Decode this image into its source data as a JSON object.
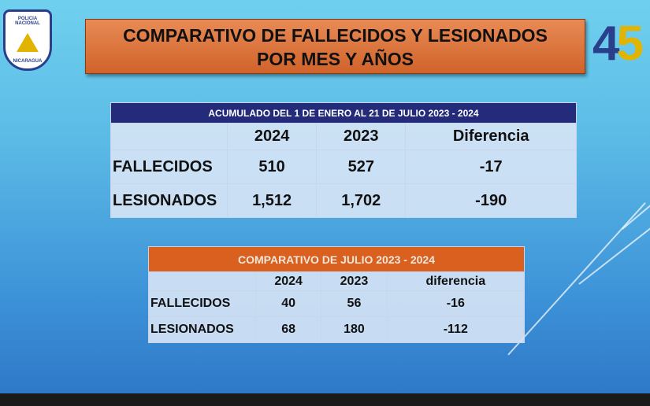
{
  "logo_left": {
    "top": "POLICIA NACIONAL",
    "bottom": "NICARAGUA"
  },
  "logo_right": {
    "digit_a": "4",
    "digit_b": "5"
  },
  "title": {
    "line1": "COMPARATIVO DE FALLECIDOS Y LESIONADOS",
    "line2": "POR MES Y AÑOS"
  },
  "table1": {
    "header": "ACUMULADO DEL 1 DE ENERO AL 21 DE JULIO  2023 - 2024",
    "columns": [
      "",
      "2024",
      "2023",
      "Diferencia"
    ],
    "rows": [
      {
        "label": "FALLECIDOS",
        "y2024": "510",
        "y2023": "527",
        "diff": "-17"
      },
      {
        "label": "LESIONADOS",
        "y2024": "1,512",
        "y2023": "1,702",
        "diff": "-190"
      }
    ]
  },
  "table2": {
    "header": "COMPARATIVO DE JULIO 2023 - 2024",
    "columns": [
      "",
      "2024",
      "2023",
      "diferencia"
    ],
    "rows": [
      {
        "label": "FALLECIDOS",
        "y2024": "40",
        "y2023": "56",
        "diff": "-16"
      },
      {
        "label": "LESIONADOS",
        "y2024": "68",
        "y2023": "180",
        "diff": "-112"
      }
    ]
  }
}
